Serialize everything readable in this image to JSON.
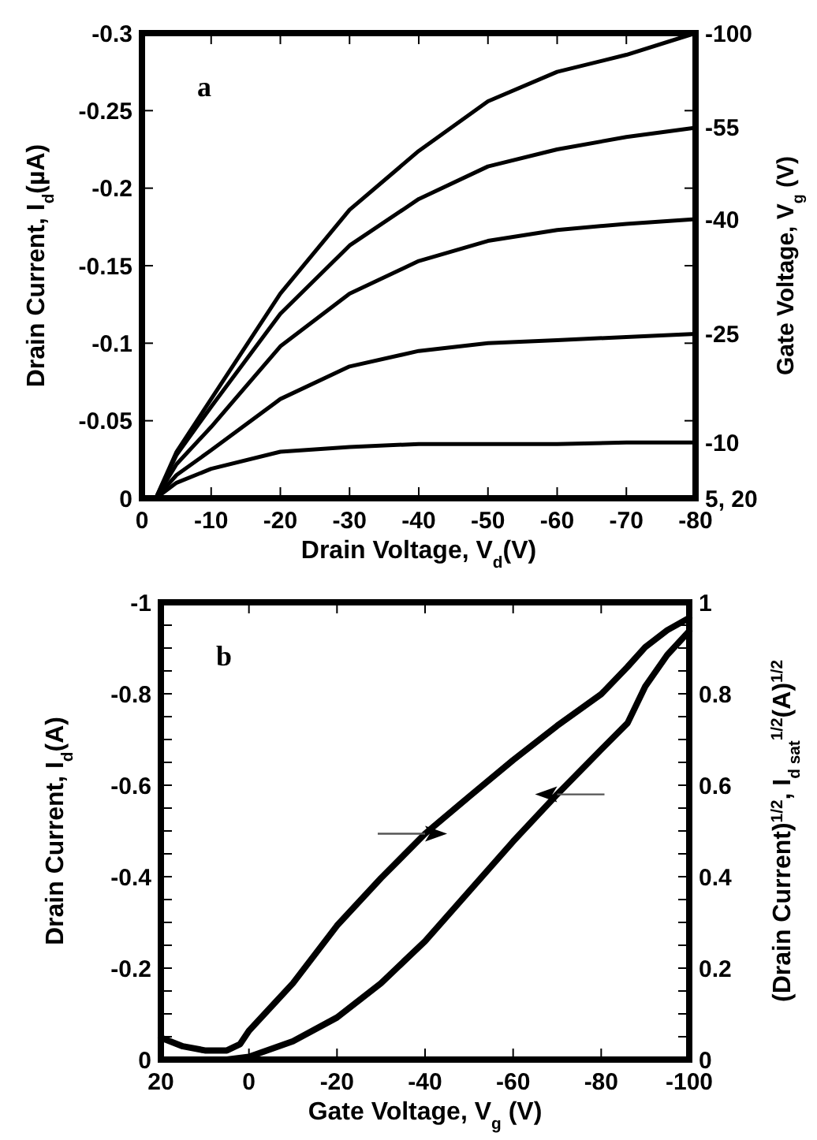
{
  "chart_data": [
    {
      "type": "line",
      "annotations": [
        "a"
      ],
      "xlabel": "Drain Voltage, V$_{d}$(V)",
      "ylabel": "Drain Current, I$_{d}$(µA)",
      "legend_title": "Gate Voltage, V$_{g}$ (V)",
      "legend": "right",
      "x": [
        -2,
        -5,
        -10,
        -20,
        -30,
        -40,
        -50,
        -60,
        -70,
        -80
      ],
      "xlim": [
        0,
        -80
      ],
      "xticks": [
        0,
        -10,
        -20,
        -30,
        -40,
        -50,
        -60,
        -70,
        -80
      ],
      "ylim": [
        0,
        -0.3
      ],
      "yticks": [
        0,
        -0.05,
        -0.1,
        -0.15,
        -0.2,
        -0.25,
        -0.3
      ],
      "series": [
        {
          "name": "-100",
          "color": "#000000",
          "values": [
            0,
            -0.03,
            -0.064,
            -0.132,
            -0.186,
            -0.224,
            -0.256,
            -0.275,
            -0.286,
            -0.3
          ]
        },
        {
          "name": "-55",
          "color": "#000000",
          "values": [
            0,
            -0.028,
            -0.059,
            -0.119,
            -0.163,
            -0.193,
            -0.214,
            -0.225,
            -0.233,
            -0.239
          ]
        },
        {
          "name": "-40",
          "color": "#000000",
          "values": [
            0,
            -0.022,
            -0.046,
            -0.098,
            -0.132,
            -0.153,
            -0.166,
            -0.173,
            -0.177,
            -0.18
          ]
        },
        {
          "name": "-25",
          "color": "#000000",
          "values": [
            0,
            -0.015,
            -0.031,
            -0.064,
            -0.085,
            -0.095,
            -0.1,
            -0.102,
            -0.104,
            -0.106
          ]
        },
        {
          "name": "-10",
          "color": "#000000",
          "values": [
            0,
            -0.01,
            -0.019,
            -0.03,
            -0.033,
            -0.035,
            -0.035,
            -0.035,
            -0.036,
            -0.036
          ]
        },
        {
          "name": "5, 20",
          "color": "#000000",
          "values": [
            0,
            0,
            0,
            0,
            0,
            0,
            0,
            0,
            0,
            0
          ]
        }
      ]
    },
    {
      "type": "line",
      "annotations": [
        "b"
      ],
      "xlabel": "Gate Voltage, V$_{g}$ (V)",
      "ylabel": "Drain Current, I$_{d}$(A)",
      "y2label": "(Drain Current)$^{1/2}$, I$_{d sat}$$^{1/2}$(A)$^{1/2}$",
      "xlim": [
        20,
        -100
      ],
      "xticks": [
        20,
        0,
        -20,
        -40,
        -60,
        -80,
        -100
      ],
      "ylim": [
        0,
        -1
      ],
      "yticks": [
        0,
        {
          "value": -0.05,
          "label": null
        },
        {
          "value": -0.1,
          "label": null
        },
        {
          "value": -0.15,
          "label": null
        },
        -0.2,
        {
          "value": -0.25,
          "label": null
        },
        {
          "value": -0.3,
          "label": null
        },
        {
          "value": -0.35,
          "label": null
        },
        -0.4,
        {
          "value": -0.45,
          "label": null
        },
        {
          "value": -0.5,
          "label": null
        },
        {
          "value": -0.55,
          "label": null
        },
        -0.6,
        {
          "value": -0.65,
          "label": null
        },
        {
          "value": -0.7,
          "label": null
        },
        {
          "value": -0.75,
          "label": null
        },
        -0.8,
        {
          "value": -0.85,
          "label": null
        },
        {
          "value": -0.9,
          "label": null
        },
        {
          "value": -0.95,
          "label": null
        },
        -1
      ],
      "y2lim": [
        0,
        1
      ],
      "y2ticks": [
        0,
        0.2,
        0.4,
        0.6,
        0.8,
        1
      ],
      "series": [
        {
          "color": "#000000",
          "x": [
            20,
            15,
            10,
            5,
            2,
            0,
            -10,
            -20,
            -30,
            -40,
            -50,
            -60,
            -70,
            -80,
            -86,
            -90,
            -95,
            -100
          ],
          "values": [
            -0.048,
            -0.029,
            -0.02,
            -0.02,
            -0.034,
            -0.063,
            -0.167,
            -0.293,
            -0.397,
            -0.494,
            -0.575,
            -0.655,
            -0.73,
            -0.799,
            -0.859,
            -0.902,
            -0.939,
            -0.966
          ]
        },
        {
          "color": "#000000",
          "x": [
            -100,
            -95,
            -90,
            -86,
            -80,
            -70,
            -60,
            -50,
            -40,
            -30,
            -20,
            -10,
            0,
            5
          ],
          "values": [
            -0.937,
            -0.885,
            -0.816,
            -0.736,
            -0.678,
            -0.58,
            -0.477,
            -0.368,
            -0.259,
            -0.167,
            -0.092,
            -0.04,
            -0.006,
            0
          ]
        }
      ]
    }
  ]
}
